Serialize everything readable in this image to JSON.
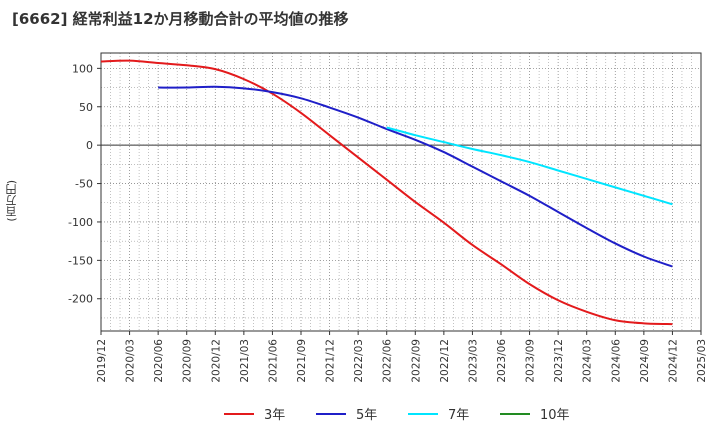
{
  "chart_data": {
    "type": "line",
    "title": "[6662]  経常利益12か月移動合計の平均値の推移",
    "ylabel": "(百万円)",
    "xlabel": "",
    "ylim": [
      -242,
      120
    ],
    "yticks": [
      100,
      50,
      0,
      -50,
      -100,
      -150,
      -200
    ],
    "xticks": [
      "2019/12",
      "2020/03",
      "2020/06",
      "2020/09",
      "2020/12",
      "2021/03",
      "2021/06",
      "2021/09",
      "2021/12",
      "2022/03",
      "2022/06",
      "2022/09",
      "2022/12",
      "2023/03",
      "2023/06",
      "2023/09",
      "2023/12",
      "2024/03",
      "2024/06",
      "2024/09",
      "2024/12",
      "2025/03"
    ],
    "grid": true,
    "legend_position": "bottom",
    "series": [
      {
        "name": "3年",
        "color": "#e31a1c",
        "x": [
          "2019/12",
          "2020/03",
          "2020/06",
          "2020/09",
          "2020/12",
          "2021/03",
          "2021/06",
          "2021/09",
          "2021/12",
          "2022/03",
          "2022/06",
          "2022/09",
          "2022/12",
          "2023/03",
          "2023/06",
          "2023/09",
          "2023/12",
          "2024/03",
          "2024/06",
          "2024/09",
          "2024/12"
        ],
        "values": [
          109,
          110,
          107,
          104,
          99,
          86,
          67,
          42,
          13,
          -16,
          -45,
          -74,
          -101,
          -130,
          -155,
          -181,
          -202,
          -217,
          -228,
          -232,
          -233
        ]
      },
      {
        "name": "5年",
        "color": "#1f1fc8",
        "x": [
          "2020/06",
          "2020/09",
          "2020/12",
          "2021/03",
          "2021/06",
          "2021/09",
          "2021/12",
          "2022/03",
          "2022/06",
          "2022/09",
          "2022/12",
          "2023/03",
          "2023/06",
          "2023/09",
          "2023/12",
          "2024/03",
          "2024/06",
          "2024/09",
          "2024/12"
        ],
        "values": [
          75,
          75,
          76,
          74,
          69,
          61,
          49,
          36,
          21,
          7,
          -9,
          -28,
          -47,
          -66,
          -87,
          -108,
          -128,
          -145,
          -158
        ]
      },
      {
        "name": "7年",
        "color": "#00e5ff",
        "x": [
          "2022/06",
          "2022/09",
          "2022/12",
          "2023/03",
          "2023/06",
          "2023/09",
          "2023/12",
          "2024/03",
          "2024/06",
          "2024/09",
          "2024/12"
        ],
        "values": [
          23,
          13,
          4,
          -5,
          -13,
          -22,
          -33,
          -44,
          -55,
          -66,
          -77
        ]
      },
      {
        "name": "10年",
        "color": "#228b22",
        "x": [],
        "values": []
      }
    ]
  }
}
